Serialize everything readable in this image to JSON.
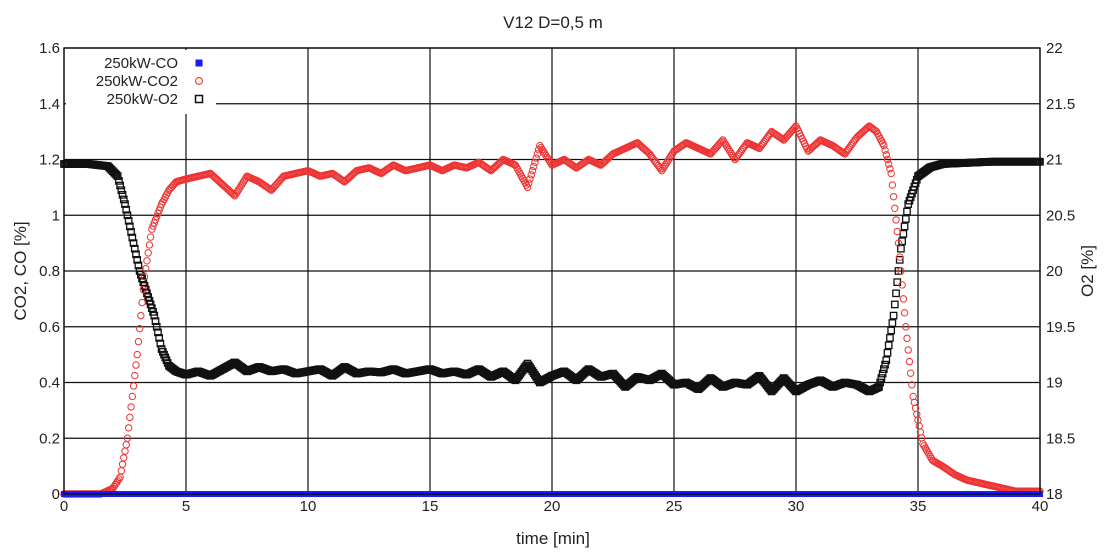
{
  "chart_data": {
    "type": "scatter",
    "title": "V12 D=0,5 m",
    "xlabel": "time [min]",
    "ylabel": "CO2, CO [%]",
    "y2label": "O2 [%]",
    "xlim": [
      0,
      40
    ],
    "ylim": [
      0,
      1.6
    ],
    "y2lim": [
      18,
      22
    ],
    "xticks": [
      0,
      5,
      10,
      15,
      20,
      25,
      30,
      35,
      40
    ],
    "yticks": [
      0,
      0.2,
      0.4,
      0.6,
      0.8,
      1,
      1.2,
      1.4,
      1.6
    ],
    "y2ticks": [
      18,
      18.5,
      19,
      19.5,
      20,
      20.5,
      21,
      21.5,
      22
    ],
    "grid": true,
    "legend_position": "top-left",
    "series": [
      {
        "name": "250kW-CO",
        "axis": "left",
        "marker": "filled-square",
        "color": "#1a1aff",
        "x": [
          0,
          5,
          10,
          15,
          20,
          25,
          30,
          35,
          40
        ],
        "y": [
          0,
          0,
          0,
          0,
          0,
          0,
          0,
          0,
          0
        ]
      },
      {
        "name": "250kW-CO2",
        "axis": "left",
        "marker": "open-circle",
        "color": "#ee3333",
        "x": [
          0,
          1.5,
          2,
          2.3,
          2.6,
          3.0,
          3.3,
          3.6,
          4.0,
          4.3,
          4.6,
          5,
          5.5,
          6,
          6.5,
          7,
          7.5,
          8,
          8.5,
          9,
          9.5,
          10,
          10.5,
          11,
          11.5,
          12,
          12.5,
          13,
          13.5,
          14,
          14.5,
          15,
          15.5,
          16,
          16.5,
          17,
          17.5,
          18,
          18.5,
          19,
          19.5,
          20,
          20.5,
          21,
          21.5,
          22,
          22.5,
          23,
          23.5,
          24,
          24.5,
          25,
          25.5,
          26,
          26.5,
          27,
          27.5,
          28,
          28.5,
          29,
          29.5,
          30,
          30.5,
          31,
          31.5,
          32,
          32.5,
          33,
          33.3,
          33.6,
          33.9,
          34.2,
          34.5,
          34.8,
          35.2,
          35.6,
          36,
          36.5,
          37,
          37.5,
          38,
          38.5,
          39,
          39.5,
          40
        ],
        "y": [
          0,
          0,
          0.02,
          0.06,
          0.2,
          0.5,
          0.78,
          0.95,
          1.04,
          1.09,
          1.12,
          1.13,
          1.14,
          1.15,
          1.11,
          1.07,
          1.14,
          1.12,
          1.09,
          1.14,
          1.15,
          1.16,
          1.14,
          1.15,
          1.12,
          1.16,
          1.17,
          1.15,
          1.18,
          1.16,
          1.17,
          1.18,
          1.16,
          1.18,
          1.17,
          1.19,
          1.16,
          1.2,
          1.18,
          1.1,
          1.25,
          1.18,
          1.2,
          1.17,
          1.2,
          1.18,
          1.22,
          1.24,
          1.26,
          1.22,
          1.16,
          1.23,
          1.26,
          1.24,
          1.22,
          1.27,
          1.2,
          1.26,
          1.24,
          1.3,
          1.27,
          1.32,
          1.23,
          1.27,
          1.25,
          1.22,
          1.28,
          1.32,
          1.3,
          1.25,
          1.15,
          0.9,
          0.6,
          0.35,
          0.18,
          0.12,
          0.1,
          0.07,
          0.05,
          0.04,
          0.03,
          0.02,
          0.01,
          0.01,
          0.01
        ]
      },
      {
        "name": "250kW-O2",
        "axis": "right",
        "marker": "open-square",
        "color": "#111111",
        "x": [
          0,
          1,
          1.8,
          2.2,
          2.5,
          2.8,
          3.1,
          3.4,
          3.7,
          4.0,
          4.3,
          4.6,
          5,
          5.5,
          6,
          6.5,
          7,
          7.5,
          8,
          8.5,
          9,
          9.5,
          10,
          10.5,
          11,
          11.5,
          12,
          12.5,
          13,
          13.5,
          14,
          14.5,
          15,
          15.5,
          16,
          16.5,
          17,
          17.5,
          18,
          18.5,
          19,
          19.5,
          20,
          20.5,
          21,
          21.5,
          22,
          22.5,
          23,
          23.5,
          24,
          24.5,
          25,
          25.5,
          26,
          26.5,
          27,
          27.5,
          28,
          28.5,
          29,
          29.5,
          30,
          30.5,
          31,
          31.5,
          32,
          32.5,
          33,
          33.4,
          33.7,
          34.0,
          34.3,
          34.6,
          35,
          35.5,
          36,
          37,
          38,
          39,
          40
        ],
        "y": [
          20.96,
          20.96,
          20.94,
          20.85,
          20.6,
          20.3,
          20.0,
          19.8,
          19.6,
          19.3,
          19.15,
          19.1,
          19.07,
          19.1,
          19.06,
          19.12,
          19.18,
          19.1,
          19.14,
          19.1,
          19.12,
          19.08,
          19.1,
          19.12,
          19.06,
          19.14,
          19.08,
          19.1,
          19.09,
          19.12,
          19.08,
          19.1,
          19.12,
          19.08,
          19.1,
          19.07,
          19.12,
          19.05,
          19.1,
          19.02,
          19.17,
          19.0,
          19.06,
          19.1,
          19.02,
          19.12,
          19.05,
          19.08,
          18.96,
          19.05,
          19.02,
          19.08,
          18.98,
          19.0,
          18.94,
          19.04,
          18.96,
          19.0,
          18.98,
          19.06,
          18.92,
          19.04,
          18.92,
          18.98,
          19.02,
          18.96,
          19.0,
          18.98,
          18.92,
          18.96,
          19.2,
          19.6,
          20.2,
          20.6,
          20.85,
          20.93,
          20.96,
          20.97,
          20.98,
          20.98,
          20.98
        ]
      }
    ]
  }
}
